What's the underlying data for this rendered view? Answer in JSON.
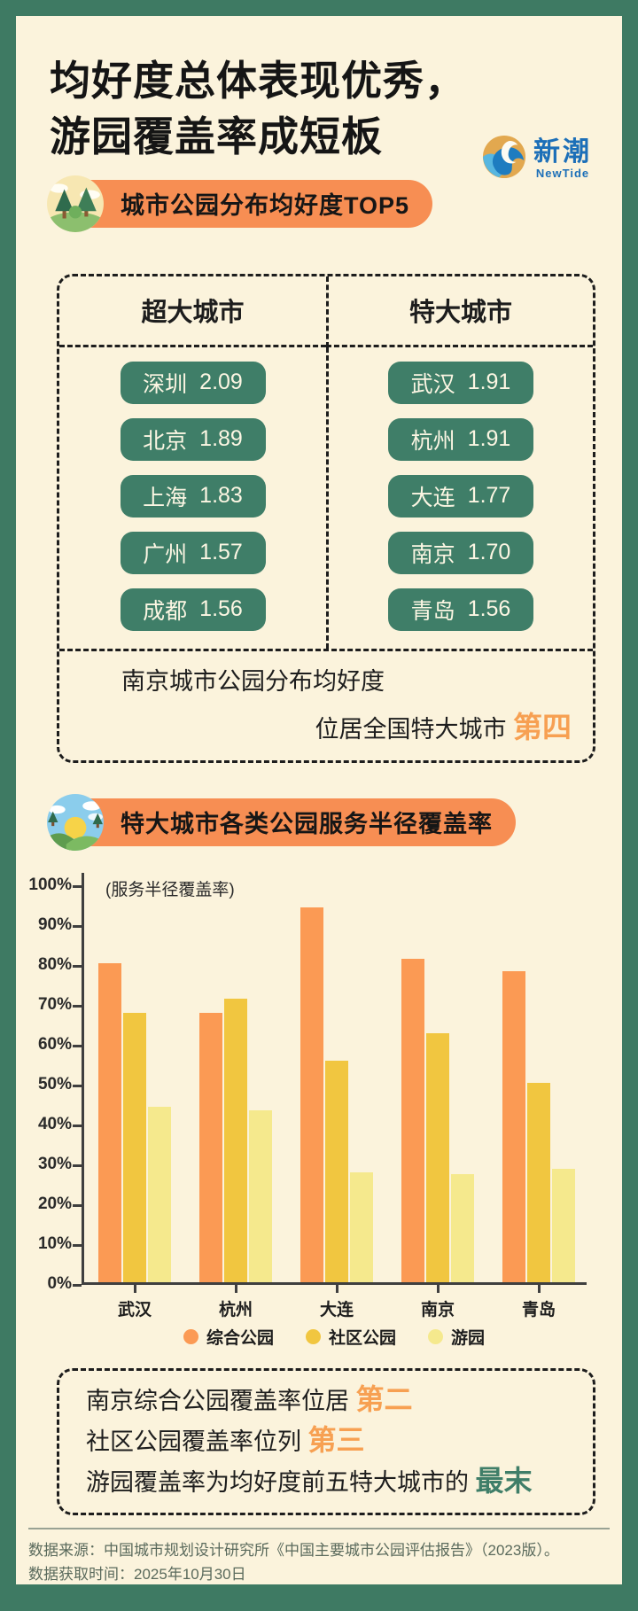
{
  "theme": {
    "bg_cream": "#FBF3DC",
    "frame_green": "#3E7A63",
    "accent_orange": "#F78E53",
    "pill_green": "#3F7E68",
    "highlight_orange": "#F7A052",
    "highlight_green": "#3F7E68"
  },
  "header": {
    "title_line1": "均好度总体表现优秀，",
    "title_line2": "游园覆盖率成短板",
    "logo_cn": "新潮",
    "logo_en": "NewTide"
  },
  "section1": {
    "title": "城市公园分布均好度TOP5",
    "columns": [
      "超大城市",
      "特大城市"
    ],
    "super_cities": [
      {
        "city": "深圳",
        "value": "2.09"
      },
      {
        "city": "北京",
        "value": "1.89"
      },
      {
        "city": "上海",
        "value": "1.83"
      },
      {
        "city": "广州",
        "value": "1.57"
      },
      {
        "city": "成都",
        "value": "1.56"
      }
    ],
    "mega_cities": [
      {
        "city": "武汉",
        "value": "1.91"
      },
      {
        "city": "杭州",
        "value": "1.91"
      },
      {
        "city": "大连",
        "value": "1.77"
      },
      {
        "city": "南京",
        "value": "1.70"
      },
      {
        "city": "青岛",
        "value": "1.56"
      }
    ],
    "note_line1": "南京城市公园分布均好度",
    "note_line2": "位居全国特大城市 ",
    "note_highlight": "第四"
  },
  "section2": {
    "title": "特大城市各类公园服务半径覆盖率"
  },
  "chart_data": {
    "type": "bar",
    "title": "特大城市各类公园服务半径覆盖率",
    "axis_note": "(服务半径覆盖率)",
    "categories": [
      "武汉",
      "杭州",
      "大连",
      "南京",
      "青岛"
    ],
    "series": [
      {
        "name": "综合公园",
        "color": "#FB9A54",
        "values": [
          80,
          67.5,
          94,
          81,
          78
        ]
      },
      {
        "name": "社区公园",
        "color": "#F1C640",
        "values": [
          67.5,
          71,
          55.5,
          62.5,
          50
        ]
      },
      {
        "name": "游园",
        "color": "#F5E98D",
        "values": [
          44,
          43,
          27.5,
          27,
          28.5
        ]
      }
    ],
    "ylim": [
      0,
      100
    ],
    "ytick_labels": [
      "100%",
      "90%",
      "80%",
      "70%",
      "60%",
      "50%",
      "40%",
      "30%",
      "20%",
      "10%",
      "0%"
    ],
    "ylabel": "服务半径覆盖率",
    "xlabel": "",
    "grid": false,
    "legend_position": "bottom"
  },
  "callout": {
    "lines": [
      {
        "text": "南京综合公园覆盖率位居 ",
        "highlight": "第二",
        "color": "#F7A052"
      },
      {
        "text": "社区公园覆盖率位列 ",
        "highlight": "第三",
        "color": "#F7A052"
      },
      {
        "text": "游园覆盖率为均好度前五特大城市的 ",
        "highlight": "最末",
        "color": "#3F7E68"
      }
    ]
  },
  "footer": {
    "source": "数据来源：中国城市规划设计研究所《中国主要城市公园评估报告》（2023版）。",
    "retrieved": "数据获取时间：2025年10月30日"
  }
}
